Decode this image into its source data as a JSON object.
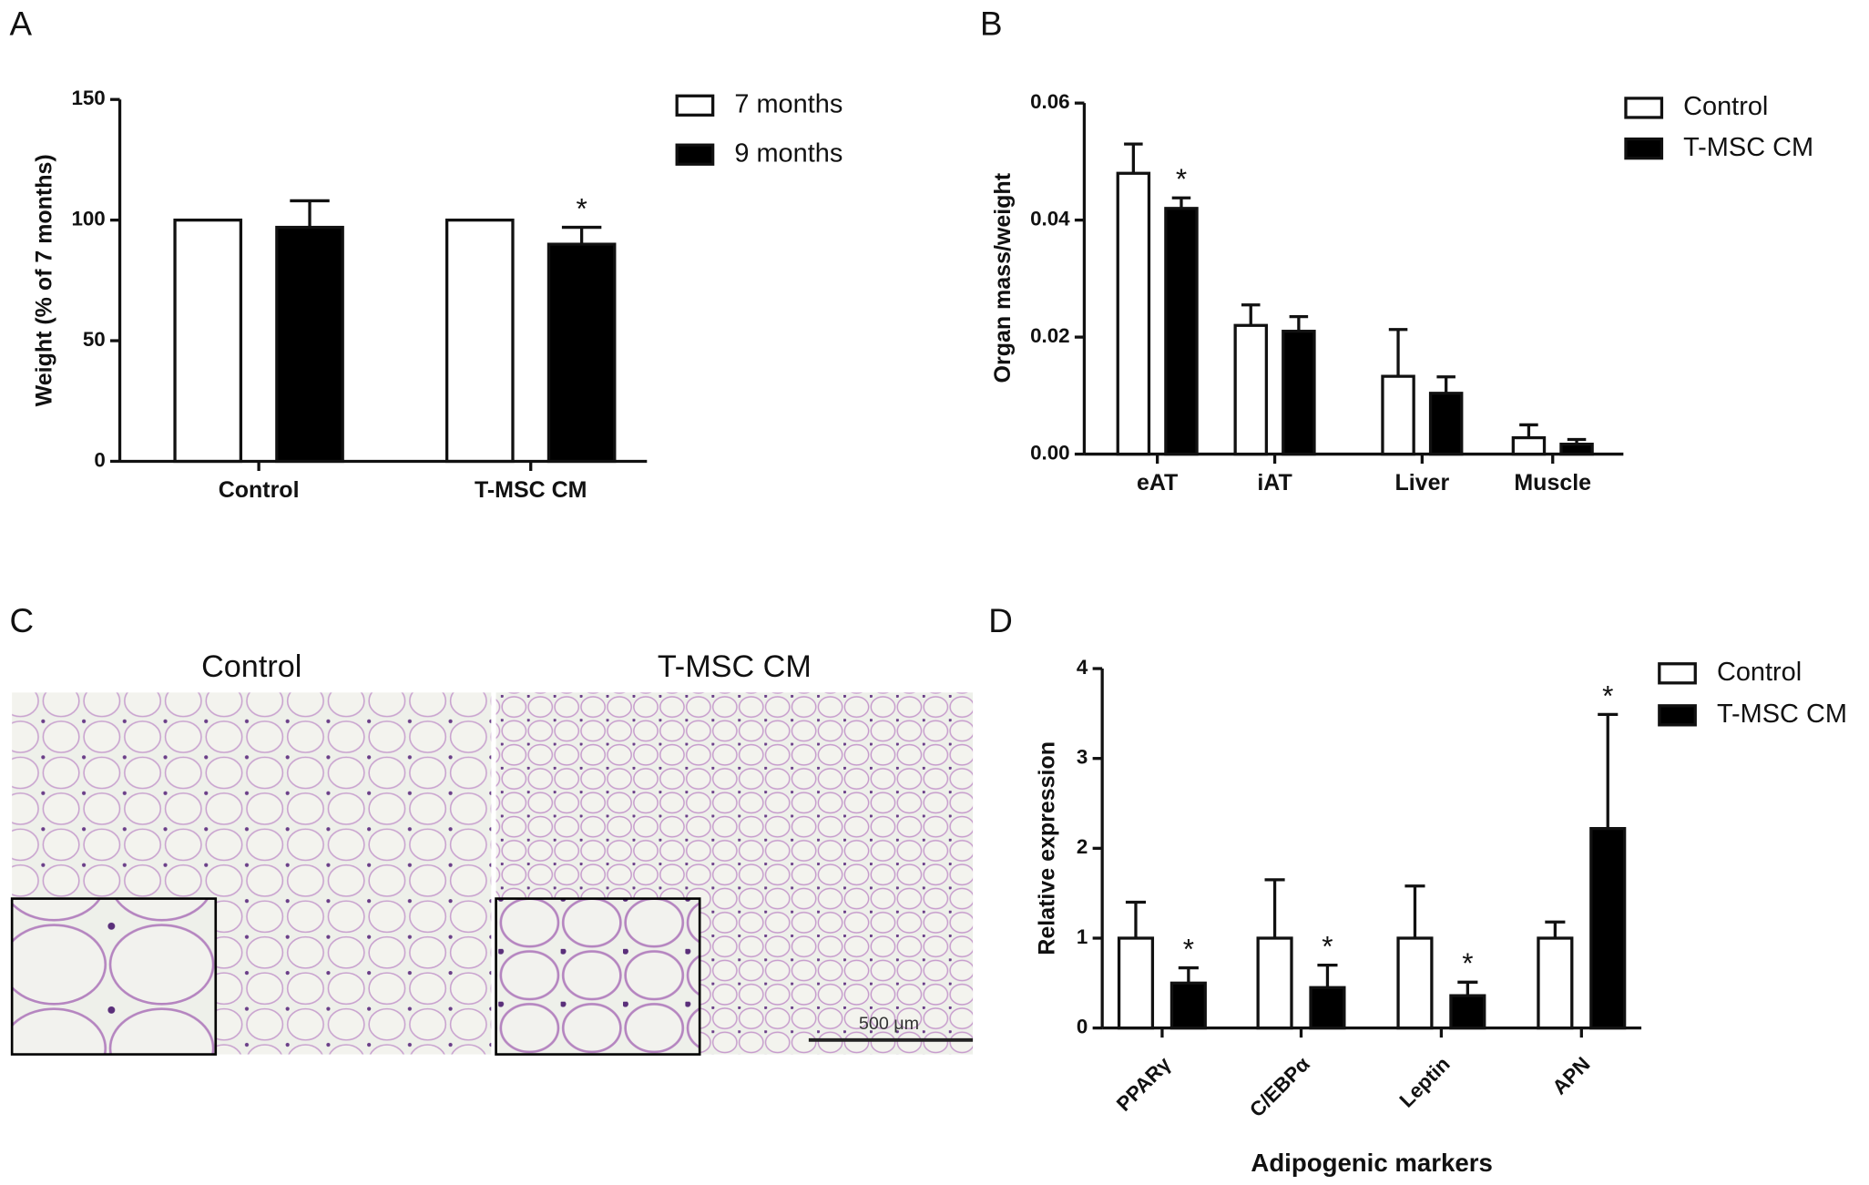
{
  "chart_data": [
    {
      "type": "bar",
      "panel": "A",
      "ylabel": "Weight (% of 7 months)",
      "categories": [
        "Control",
        "T-MSC CM"
      ],
      "series": [
        {
          "name": "7 months",
          "color": "#ffffff",
          "values": [
            100,
            100
          ],
          "errors": [
            0,
            0
          ],
          "significance": [
            null,
            null
          ]
        },
        {
          "name": "9 months",
          "color": "#000000",
          "values": [
            97,
            90
          ],
          "errors": [
            11,
            7
          ],
          "significance": [
            null,
            "*"
          ]
        }
      ],
      "ylim": [
        0,
        150
      ],
      "yticks": [
        0,
        50,
        100,
        150
      ],
      "grid": false,
      "legend": "outside-right"
    },
    {
      "type": "bar",
      "panel": "B",
      "ylabel": "Organ mass/weight",
      "categories": [
        "eAT",
        "iAT",
        "Liver",
        "Muscle"
      ],
      "series": [
        {
          "name": "Control",
          "color": "#ffffff",
          "values": [
            0.048,
            0.022,
            0.0133,
            0.0028
          ],
          "errors": [
            0.005,
            0.0035,
            0.008,
            0.0022
          ],
          "significance": [
            null,
            null,
            null,
            null
          ]
        },
        {
          "name": "T-MSC CM",
          "color": "#000000",
          "values": [
            0.042,
            0.021,
            0.0104,
            0.0017
          ],
          "errors": [
            0.0018,
            0.0025,
            0.0028,
            0.0008
          ],
          "significance": [
            "*",
            null,
            null,
            null
          ]
        }
      ],
      "ylim": [
        0,
        0.06
      ],
      "yticks": [
        {
          "value": 0,
          "label": "0.00"
        },
        {
          "value": 0.02,
          "label": "0.02"
        },
        {
          "value": 0.04,
          "label": "0.04"
        },
        {
          "value": 0.06,
          "label": "0.06"
        }
      ],
      "grid": false,
      "legend": "outside-right"
    },
    {
      "type": "bar",
      "panel": "D",
      "ylabel": "Relative expression",
      "xlabel": "Adipogenic markers",
      "categories": [
        "PPARγ",
        "C/EBPα",
        "Leptin",
        "APN"
      ],
      "series": [
        {
          "name": "Control",
          "color": "#ffffff",
          "values": [
            1,
            1,
            1,
            1
          ],
          "errors": [
            0.4,
            0.65,
            0.58,
            0.18
          ],
          "significance": [
            null,
            null,
            null,
            null
          ]
        },
        {
          "name": "T-MSC CM",
          "color": "#000000",
          "values": [
            0.5,
            0.45,
            0.36,
            2.22
          ],
          "errors": [
            0.17,
            0.25,
            0.15,
            1.27
          ],
          "significance": [
            "*",
            "*",
            "*",
            "*"
          ]
        }
      ],
      "ylim": [
        0,
        4
      ],
      "yticks": [
        0,
        1,
        2,
        3,
        4
      ],
      "grid": false,
      "legend": "outside-right"
    }
  ],
  "image_panel": {
    "panel": "C",
    "titles": [
      "Control",
      "T-MSC CM"
    ],
    "scale_bar": "500 μm"
  }
}
